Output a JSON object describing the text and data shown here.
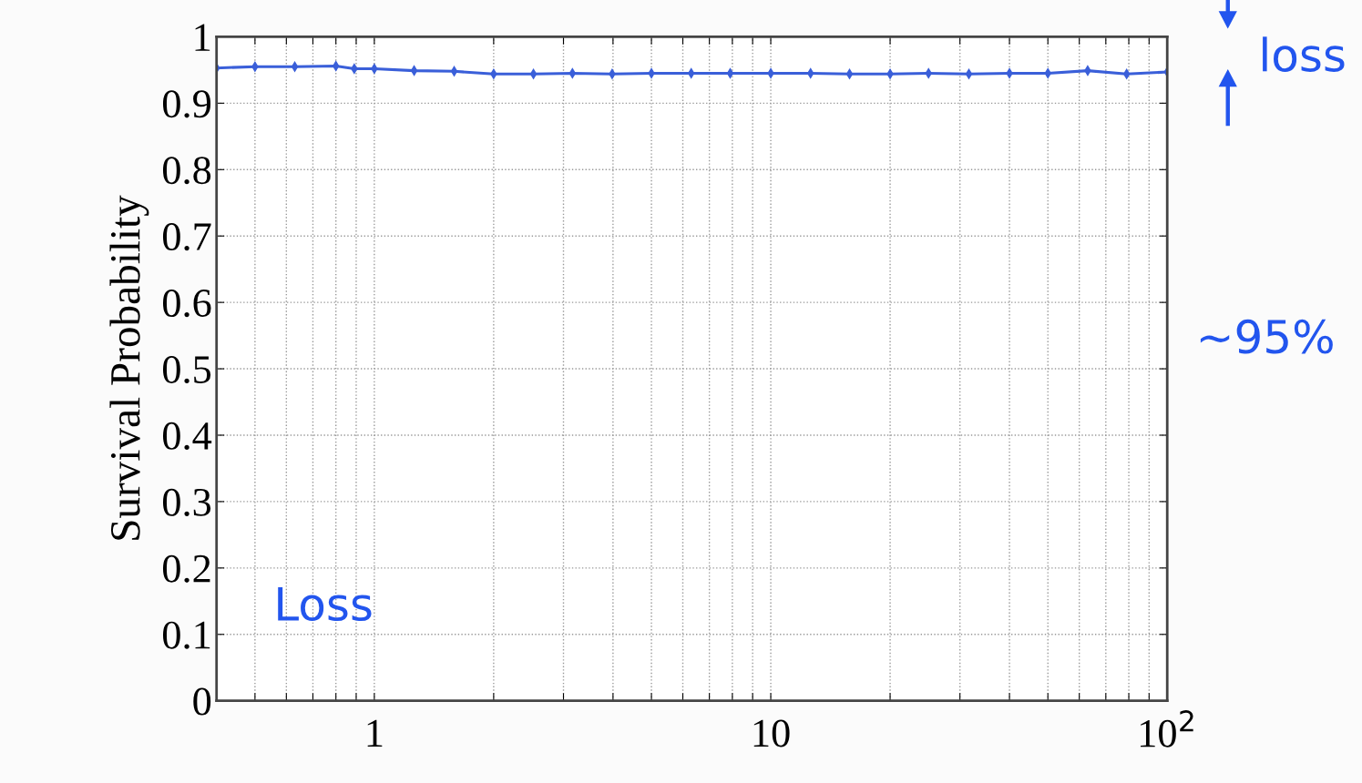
{
  "chart_data": {
    "type": "line",
    "ylabel": "Survival Probability",
    "x": [
      0.4,
      0.5,
      0.63,
      0.8,
      0.89,
      1,
      1.26,
      1.59,
      2,
      2.52,
      3.16,
      3.98,
      5,
      6.3,
      7.9,
      10,
      12.6,
      15.8,
      20,
      25,
      31.6,
      40,
      50,
      63,
      79,
      100
    ],
    "series": [
      {
        "color": "#3a5fd9",
        "values": [
          0.953,
          0.955,
          0.955,
          0.956,
          0.952,
          0.952,
          0.949,
          0.948,
          0.944,
          0.944,
          0.945,
          0.944,
          0.945,
          0.945,
          0.945,
          0.945,
          0.945,
          0.944,
          0.944,
          0.945,
          0.944,
          0.945,
          0.945,
          0.949,
          0.944,
          0.947
        ]
      }
    ],
    "log": "x",
    "xlim": [
      0.4,
      100
    ],
    "ylim": [
      0,
      1
    ],
    "xticks": [
      {
        "value": 0.4,
        "label": null
      },
      {
        "value": 0.5,
        "label": null
      },
      {
        "value": 0.6,
        "label": null
      },
      {
        "value": 0.7,
        "label": null
      },
      {
        "value": 0.8,
        "label": null
      },
      {
        "value": 0.9,
        "label": null
      },
      1,
      {
        "value": 2,
        "label": null
      },
      {
        "value": 3,
        "label": null
      },
      {
        "value": 4,
        "label": null
      },
      {
        "value": 5,
        "label": null
      },
      {
        "value": 6,
        "label": null
      },
      {
        "value": 7,
        "label": null
      },
      {
        "value": 8,
        "label": null
      },
      {
        "value": 9,
        "label": null
      },
      10,
      {
        "value": 20,
        "label": null
      },
      {
        "value": 30,
        "label": null
      },
      {
        "value": 40,
        "label": null
      },
      {
        "value": 50,
        "label": null
      },
      {
        "value": 60,
        "label": null
      },
      {
        "value": 70,
        "label": null
      },
      {
        "value": 80,
        "label": null
      },
      {
        "value": 90,
        "label": null
      },
      {
        "value": 100,
        "label": "10$^{2}$"
      }
    ],
    "yticks": [
      0,
      0.1,
      0.2,
      0.3,
      0.4,
      0.5,
      0.6,
      0.7,
      0.8,
      0.9,
      1
    ],
    "grid": true,
    "marker": "diamond",
    "line_style": "solid",
    "annotations": [
      "loss",
      "~95%",
      "Loss"
    ]
  }
}
